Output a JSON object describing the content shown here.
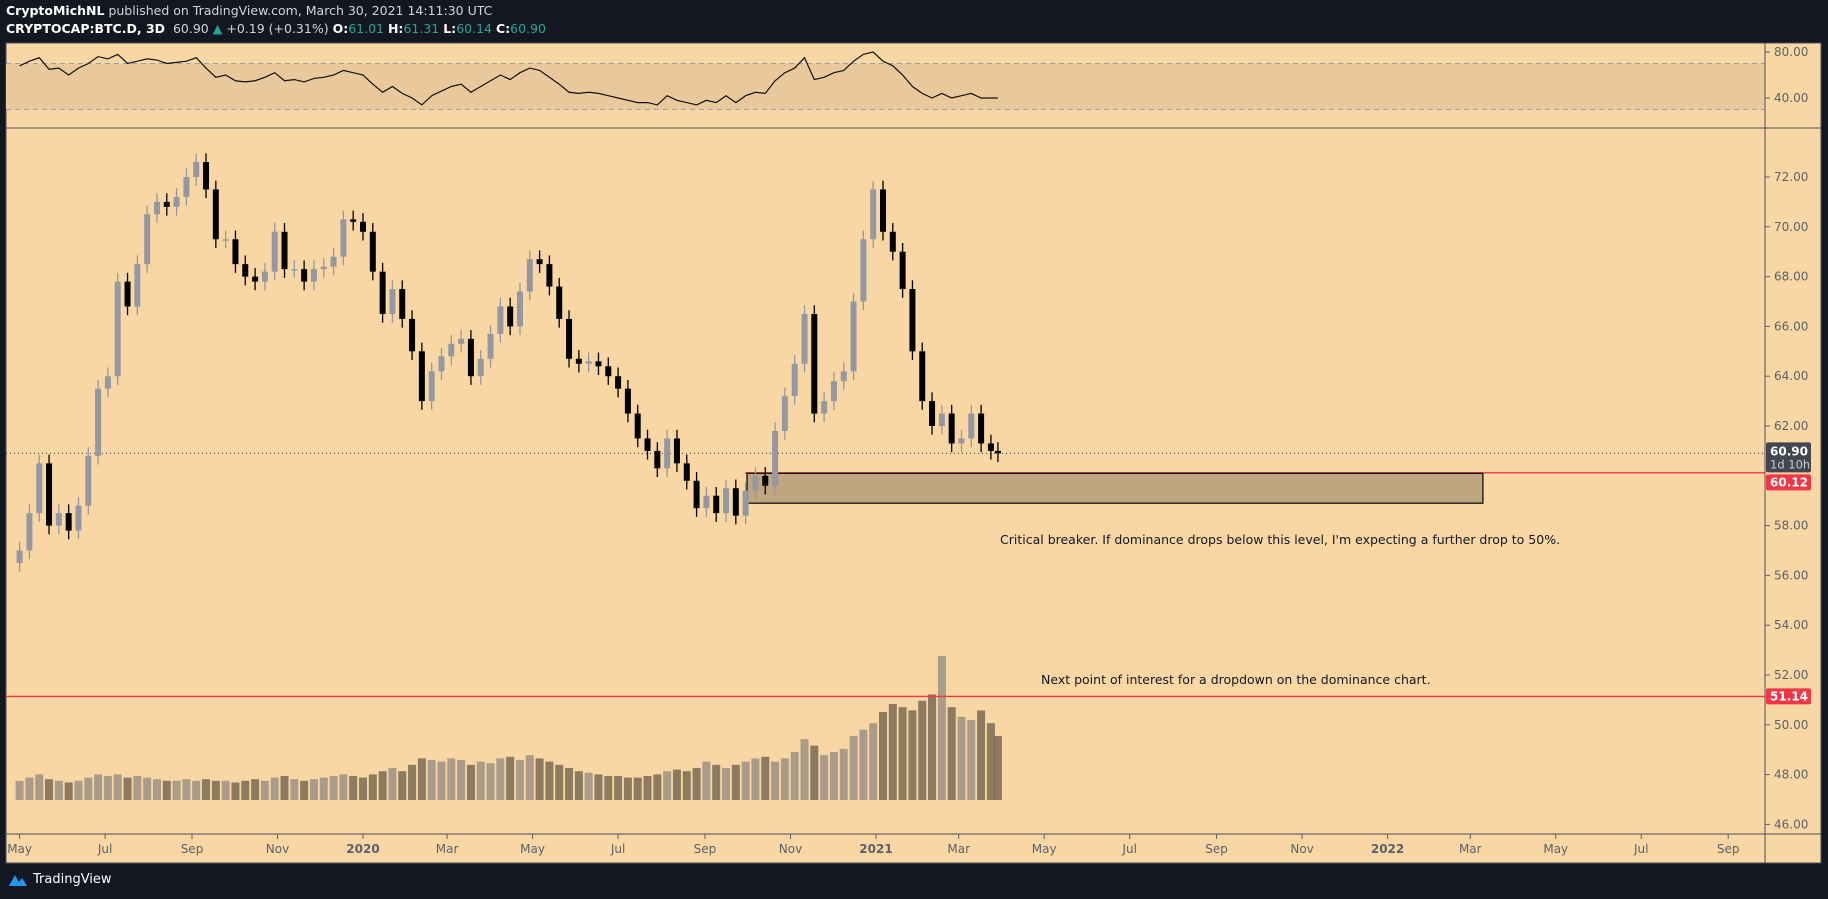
{
  "header": {
    "author": "CryptoMichNL",
    "published": "published on TradingView.com, March 30, 2021 14:11:30 UTC",
    "symbol": "CRYPTOCAP:BTC.D, 3D",
    "last": "60.90",
    "change": "+0.19 (+0.31%)",
    "o_label": "O:",
    "o": "61.01",
    "h_label": "H:",
    "h": "61.31",
    "l_label": "L:",
    "l": "60.14",
    "c_label": "C:",
    "c": "60.90"
  },
  "footer": {
    "logo_text": "TradingView"
  },
  "colors": {
    "background": "#f8d7a5",
    "up": "#9598a1",
    "down": "#000000",
    "level": "#f23645",
    "zone": "#bfa680",
    "rsi_band": "#e9c99b"
  },
  "price_labels": {
    "last": "60.90",
    "countdown": "1d 10h",
    "level1": "60.12",
    "level2": "51.14"
  },
  "annotations": {
    "critical": "Critical breaker. If dominance drops below this level, I'm expecting a further drop to 50%.",
    "next": "Next point of interest for a dropdown on the dominance chart."
  },
  "chart_data": [
    {
      "type": "candlestick",
      "yticks": [
        "72.00",
        "70.00",
        "68.00",
        "66.00",
        "64.00",
        "62.00",
        "58.00",
        "56.00",
        "54.00",
        "52.00",
        "50.00",
        "48.00",
        "46.00"
      ],
      "ytick_values": [
        72,
        70,
        68,
        66,
        64,
        62,
        58,
        56,
        54,
        52,
        50,
        48,
        46
      ],
      "xticks": [
        "May",
        "Jul",
        "Sep",
        "Nov",
        "2020",
        "Mar",
        "May",
        "Jul",
        "Sep",
        "Nov",
        "2021",
        "Mar",
        "May",
        "Jul",
        "Sep",
        "Nov",
        "2022",
        "Mar",
        "May",
        "Jul",
        "Sep"
      ],
      "xtick_dates": [
        "2019-05-01",
        "2019-07-01",
        "2019-09-01",
        "2019-11-01",
        "2020-01-01",
        "2020-03-01",
        "2020-05-01",
        "2020-07-01",
        "2020-09-01",
        "2020-11-01",
        "2021-01-01",
        "2021-03-01",
        "2021-05-01",
        "2021-07-01",
        "2021-09-01",
        "2021-11-01",
        "2022-01-01",
        "2022-03-01",
        "2022-05-01",
        "2022-07-01",
        "2022-09-01"
      ],
      "ylim": [
        45.5,
        74
      ],
      "levels": [
        60.12,
        51.14
      ],
      "zone": {
        "from": "2020-10-01",
        "to": "2022-03-10",
        "low": 58.9,
        "high": 60.1
      },
      "dates": [
        "2019-05-01",
        "2019-05-08",
        "2019-05-15",
        "2019-05-22",
        "2019-05-29",
        "2019-06-05",
        "2019-06-12",
        "2019-06-19",
        "2019-06-26",
        "2019-07-03",
        "2019-07-10",
        "2019-07-17",
        "2019-07-24",
        "2019-07-31",
        "2019-08-07",
        "2019-08-14",
        "2019-08-21",
        "2019-08-28",
        "2019-09-04",
        "2019-09-11",
        "2019-09-18",
        "2019-09-25",
        "2019-10-02",
        "2019-10-09",
        "2019-10-16",
        "2019-10-23",
        "2019-10-30",
        "2019-11-06",
        "2019-11-13",
        "2019-11-20",
        "2019-11-27",
        "2019-12-04",
        "2019-12-11",
        "2019-12-18",
        "2019-12-25",
        "2020-01-01",
        "2020-01-08",
        "2020-01-15",
        "2020-01-22",
        "2020-01-29",
        "2020-02-05",
        "2020-02-12",
        "2020-02-19",
        "2020-02-26",
        "2020-03-04",
        "2020-03-11",
        "2020-03-18",
        "2020-03-25",
        "2020-04-01",
        "2020-04-08",
        "2020-04-15",
        "2020-04-22",
        "2020-04-29",
        "2020-05-06",
        "2020-05-13",
        "2020-05-20",
        "2020-05-27",
        "2020-06-03",
        "2020-06-10",
        "2020-06-17",
        "2020-06-24",
        "2020-07-01",
        "2020-07-08",
        "2020-07-15",
        "2020-07-22",
        "2020-07-29",
        "2020-08-05",
        "2020-08-12",
        "2020-08-19",
        "2020-08-26",
        "2020-09-02",
        "2020-09-09",
        "2020-09-16",
        "2020-09-23",
        "2020-09-30",
        "2020-10-07",
        "2020-10-14",
        "2020-10-21",
        "2020-10-28",
        "2020-11-04",
        "2020-11-11",
        "2020-11-18",
        "2020-11-25",
        "2020-12-02",
        "2020-12-09",
        "2020-12-16",
        "2020-12-23",
        "2020-12-30",
        "2021-01-06",
        "2021-01-13",
        "2021-01-20",
        "2021-01-27",
        "2021-02-03",
        "2021-02-10",
        "2021-02-17",
        "2021-02-24",
        "2021-03-03",
        "2021-03-10",
        "2021-03-17",
        "2021-03-24",
        "2021-03-29"
      ],
      "close": [
        57.0,
        58.5,
        60.5,
        58.0,
        58.5,
        57.8,
        58.8,
        60.8,
        63.5,
        64.0,
        67.8,
        66.8,
        68.5,
        70.5,
        71.0,
        70.8,
        71.2,
        72.0,
        72.6,
        71.5,
        69.5,
        69.5,
        68.5,
        68.0,
        67.8,
        68.2,
        69.8,
        68.3,
        68.3,
        67.8,
        68.3,
        68.4,
        68.8,
        70.3,
        70.2,
        69.8,
        68.2,
        66.5,
        67.5,
        66.3,
        65.0,
        63.0,
        64.2,
        64.8,
        65.3,
        65.5,
        64.0,
        64.7,
        65.7,
        66.8,
        66.0,
        67.4,
        68.7,
        68.5,
        67.6,
        66.3,
        64.7,
        64.5,
        64.6,
        64.4,
        64.0,
        63.5,
        62.5,
        61.5,
        61.0,
        60.3,
        61.5,
        60.5,
        59.8,
        58.7,
        59.2,
        58.5,
        59.5,
        58.4,
        59.4,
        60.0,
        59.6,
        61.8,
        63.2,
        64.5,
        66.5,
        62.5,
        63.0,
        63.8,
        64.2,
        67.0,
        69.5,
        71.5,
        69.8,
        69.0,
        67.5,
        65.0,
        63.0,
        62.0,
        62.5,
        61.3,
        61.5,
        62.5,
        61.3,
        61.0,
        60.9
      ],
      "volume": [
        12,
        14,
        16,
        13,
        12,
        11,
        12,
        14,
        16,
        15,
        16,
        14,
        15,
        14,
        13,
        12,
        12,
        13,
        12,
        13,
        12,
        12,
        11,
        12,
        13,
        12,
        14,
        15,
        13,
        12,
        13,
        14,
        15,
        16,
        15,
        14,
        16,
        18,
        20,
        18,
        22,
        26,
        25,
        24,
        26,
        25,
        22,
        24,
        23,
        26,
        27,
        25,
        28,
        26,
        24,
        22,
        20,
        18,
        17,
        16,
        15,
        15,
        14,
        14,
        15,
        16,
        18,
        19,
        18,
        20,
        24,
        22,
        20,
        22,
        24,
        26,
        27,
        24,
        26,
        30,
        38,
        34,
        28,
        30,
        32,
        40,
        44,
        48,
        55,
        60,
        58,
        56,
        62,
        66,
        90,
        58,
        52,
        50,
        56,
        48,
        40
      ],
      "rsi_yticks": [
        "80.00",
        "40.00"
      ],
      "rsi_ytick_values": [
        80,
        40
      ],
      "rsi_band": [
        30,
        70
      ],
      "rsi": [
        68,
        72,
        75,
        65,
        66,
        60,
        66,
        70,
        76,
        74,
        78,
        70,
        72,
        74,
        73,
        70,
        71,
        72,
        75,
        66,
        58,
        60,
        55,
        54,
        55,
        58,
        62,
        55,
        56,
        54,
        57,
        58,
        60,
        64,
        62,
        60,
        52,
        45,
        50,
        44,
        40,
        34,
        42,
        46,
        50,
        52,
        45,
        50,
        55,
        60,
        56,
        62,
        66,
        64,
        58,
        52,
        45,
        44,
        45,
        44,
        42,
        40,
        38,
        36,
        36,
        34,
        42,
        38,
        36,
        34,
        38,
        36,
        42,
        36,
        42,
        45,
        44,
        55,
        62,
        66,
        75,
        56,
        58,
        62,
        64,
        72,
        78,
        80,
        72,
        68,
        60,
        50,
        44,
        40,
        44,
        40,
        42,
        44,
        40,
        40,
        40
      ]
    }
  ]
}
